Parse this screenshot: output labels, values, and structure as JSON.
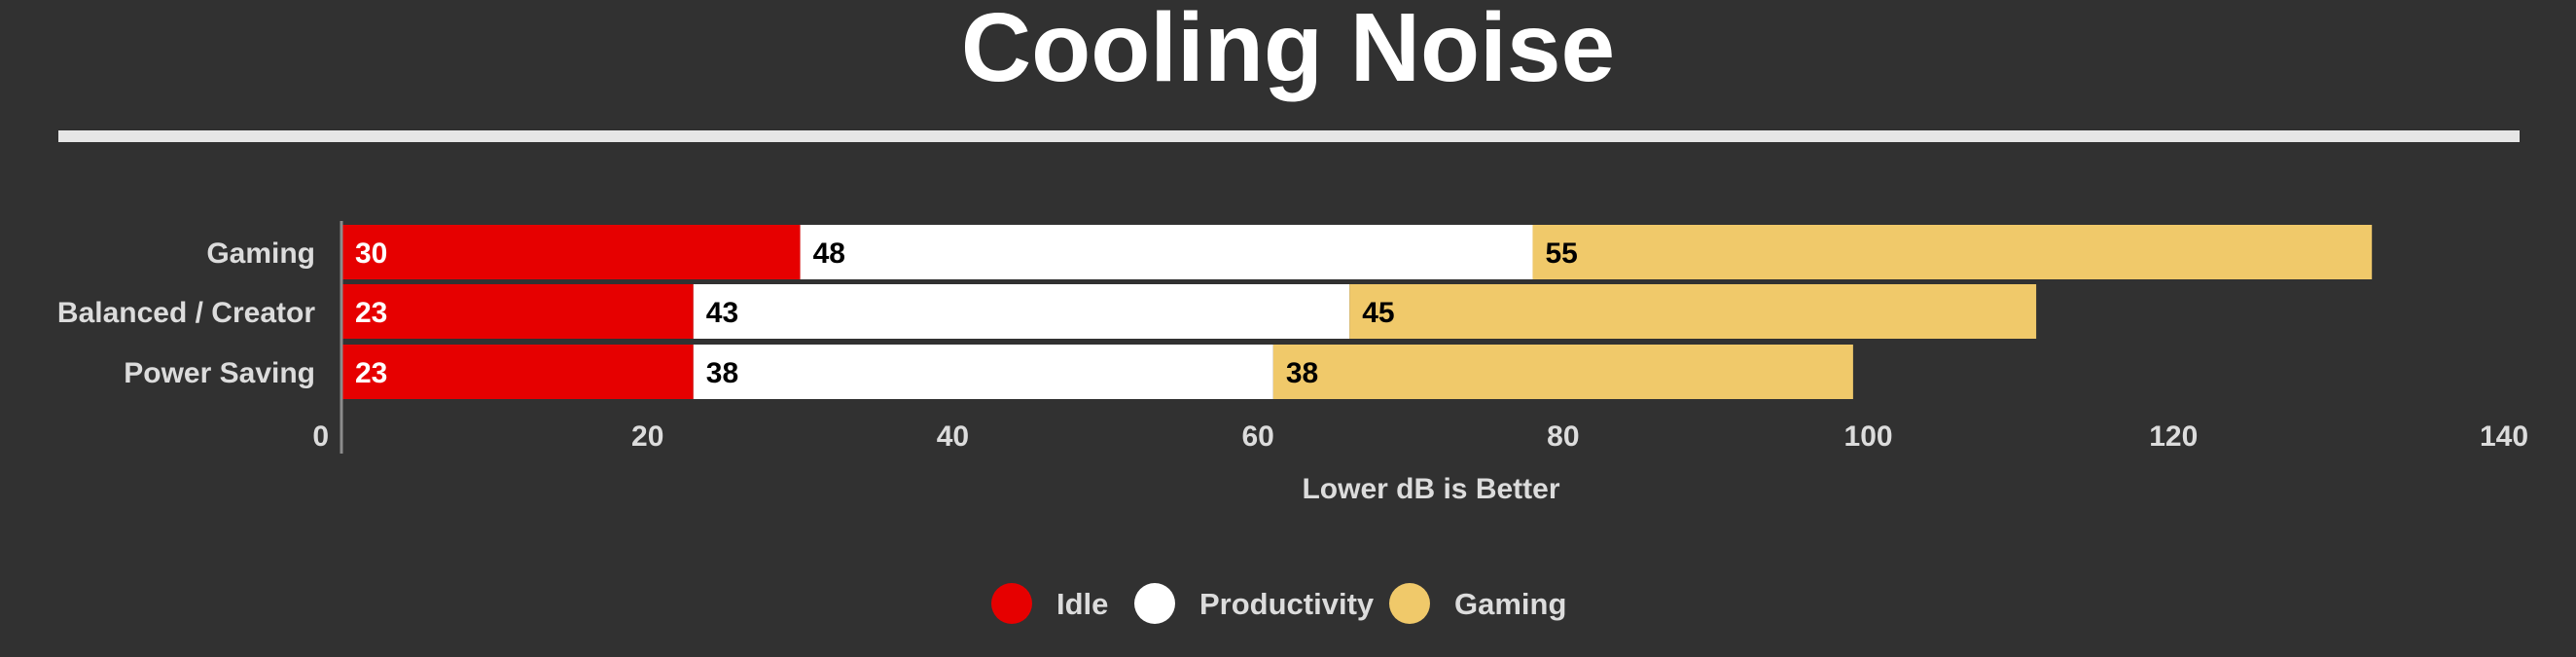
{
  "colors": {
    "background": "#313131",
    "divider": "#e6e6e6",
    "text": "#ffffff",
    "axis_text": "#dcdcdc",
    "axis_line": "#8c8c8c"
  },
  "chart_data": {
    "type": "bar",
    "orientation": "horizontal",
    "stacked": true,
    "title": "Cooling Noise",
    "xlabel": "Lower dB is Better",
    "ylabel": "",
    "xlim": [
      0,
      140
    ],
    "x_ticks": [
      "0",
      "20",
      "40",
      "60",
      "80",
      "100",
      "120",
      "140"
    ],
    "categories": [
      "Gaming",
      "Balanced / Creator",
      "Power Saving"
    ],
    "series": [
      {
        "name": "Idle",
        "color": "#e60000",
        "label_color": "#ffffff",
        "values": [
          30,
          23,
          23
        ]
      },
      {
        "name": "Productivity",
        "color": "#ffffff",
        "label_color": "#000000",
        "values": [
          48,
          43,
          38
        ]
      },
      {
        "name": "Gaming",
        "color": "#f0c96a",
        "label_color": "#000000",
        "values": [
          55,
          45,
          38
        ]
      }
    ],
    "grid": false,
    "legend_position": "bottom-center"
  }
}
